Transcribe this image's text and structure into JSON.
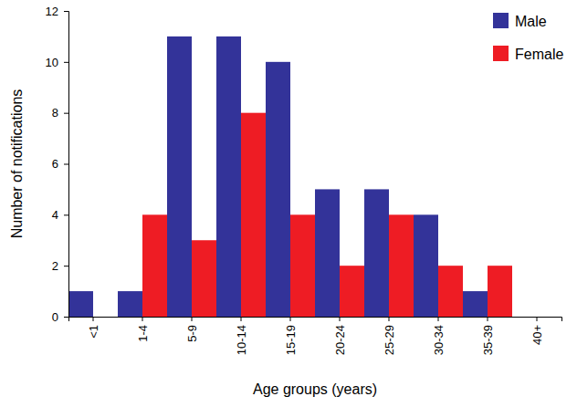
{
  "chart_data": {
    "type": "bar",
    "x_label": "Age groups (years)",
    "y_label": "Number of notifications",
    "categories": [
      "<1",
      "1-4",
      "5-9",
      "10-14",
      "15-19",
      "20-24",
      "25-29",
      "30-34",
      "35-39",
      "40+"
    ],
    "series": [
      {
        "name": "Male",
        "color": "#333399",
        "values": [
          1,
          1,
          11,
          11,
          10,
          5,
          5,
          4,
          1,
          0
        ]
      },
      {
        "name": "Female",
        "color": "#ee1c24",
        "values": [
          0,
          4,
          3,
          8,
          4,
          2,
          4,
          2,
          2,
          0
        ]
      }
    ],
    "ylim": [
      0,
      12
    ],
    "yticks": [
      0,
      2,
      4,
      6,
      8,
      10,
      12
    ],
    "grid": false,
    "legend": "top-right"
  }
}
